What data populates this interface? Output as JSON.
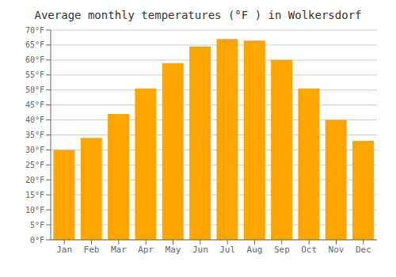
{
  "chart_data": {
    "type": "bar",
    "title": "Average monthly temperatures (°F ) in Wolkersdorf",
    "categories": [
      "Jan",
      "Feb",
      "Mar",
      "Apr",
      "May",
      "Jun",
      "Jul",
      "Aug",
      "Sep",
      "Oct",
      "Nov",
      "Dec"
    ],
    "values": [
      30,
      34,
      42,
      50.5,
      59,
      64.5,
      67,
      66.5,
      60,
      50.5,
      40,
      33
    ],
    "color": "#FFA500",
    "ylim": [
      0,
      70
    ],
    "yticks": [
      {
        "value": 0,
        "label": "0°F"
      },
      {
        "value": 5,
        "label": "5°F"
      },
      {
        "value": 10,
        "label": "10°F"
      },
      {
        "value": 15,
        "label": "15°F"
      },
      {
        "value": 20,
        "label": "20°F"
      },
      {
        "value": 25,
        "label": "25°F"
      },
      {
        "value": 30,
        "label": "30°F"
      },
      {
        "value": 35,
        "label": "35°F"
      },
      {
        "value": 40,
        "label": "40°F"
      },
      {
        "value": 45,
        "label": "45°F"
      },
      {
        "value": 50,
        "label": "50°F"
      },
      {
        "value": 55,
        "label": "55°F"
      },
      {
        "value": 60,
        "label": "60°F"
      },
      {
        "value": 65,
        "label": "65°F"
      },
      {
        "value": 70,
        "label": "70°F"
      }
    ],
    "grid": true
  }
}
